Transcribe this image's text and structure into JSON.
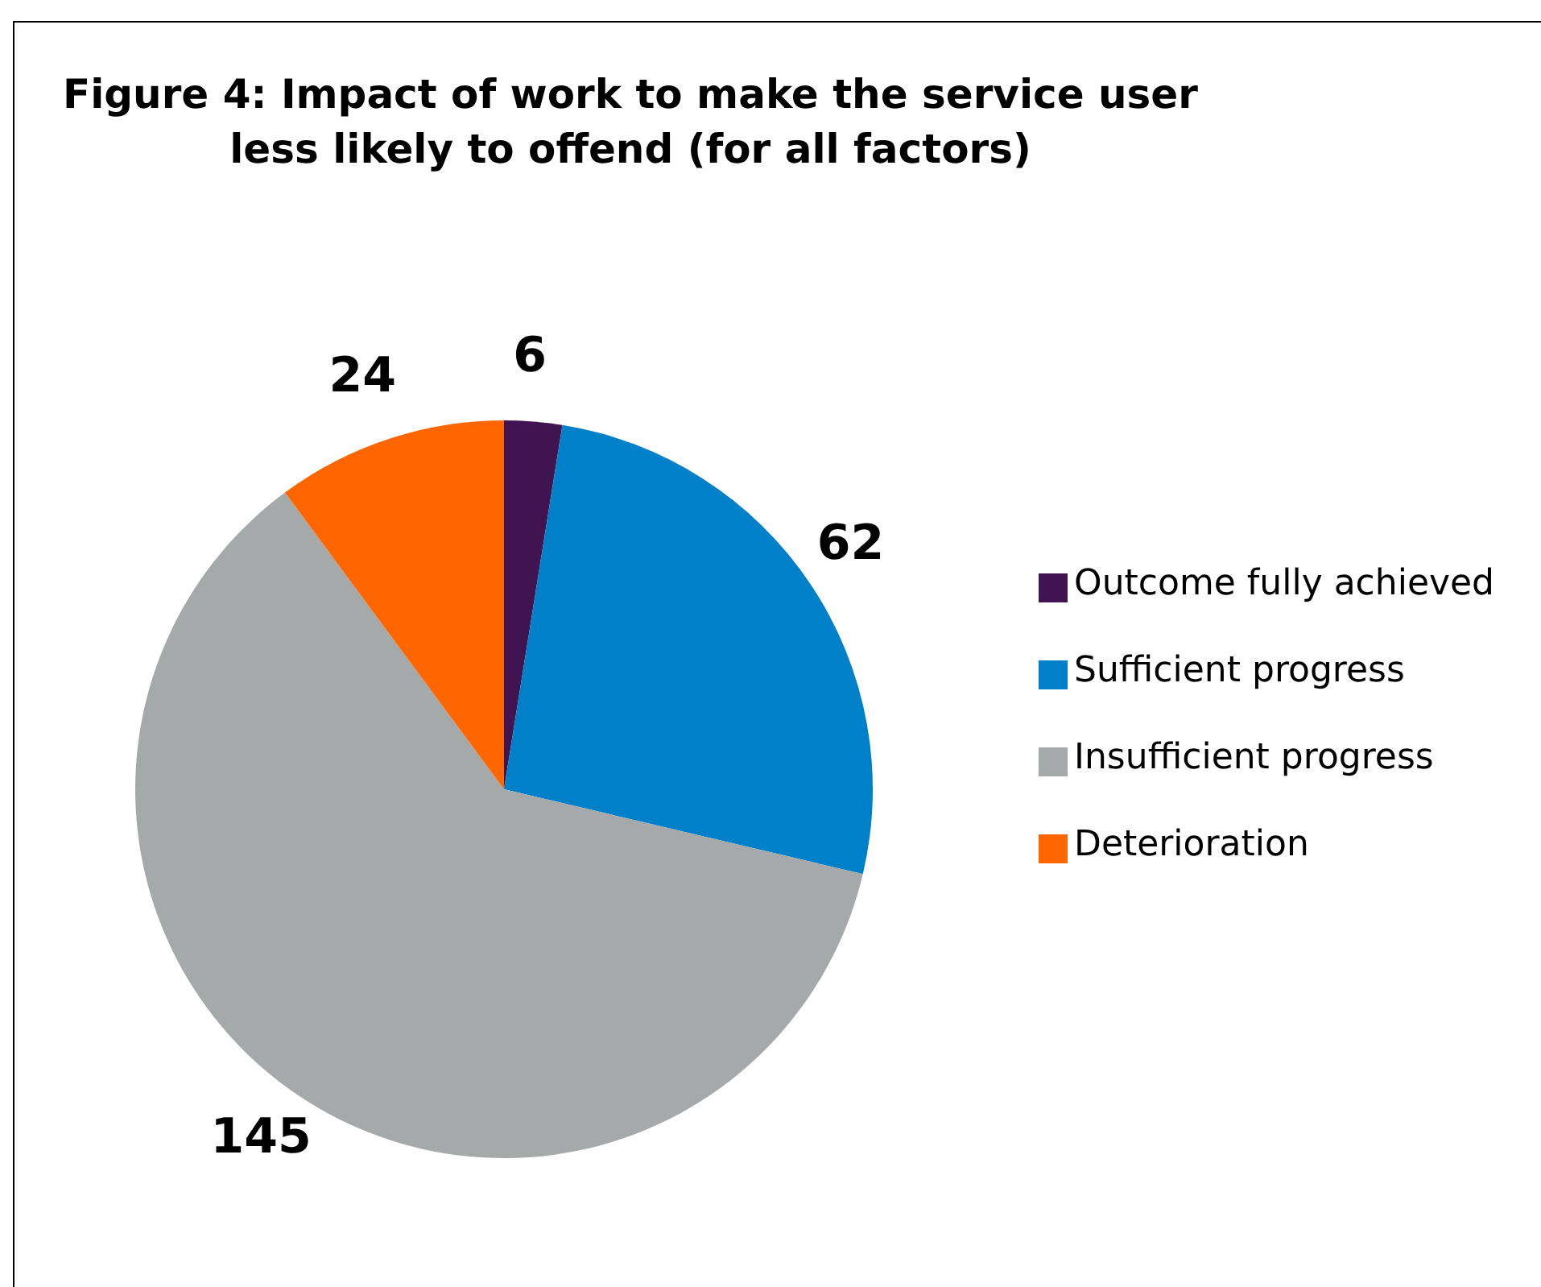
{
  "chart_data": {
    "type": "pie",
    "title": "Figure 4: Impact of work to make the service user less likely to offend (for all factors)",
    "categories": [
      "Outcome fully achieved",
      "Sufficient progress",
      "Insufficient progress",
      "Deterioration"
    ],
    "values": [
      6,
      62,
      145,
      24
    ],
    "colors": [
      "#3f1450",
      "#0080c8",
      "#a6a9aa",
      "#ff6600"
    ],
    "data_labels": true,
    "legend": "right"
  }
}
